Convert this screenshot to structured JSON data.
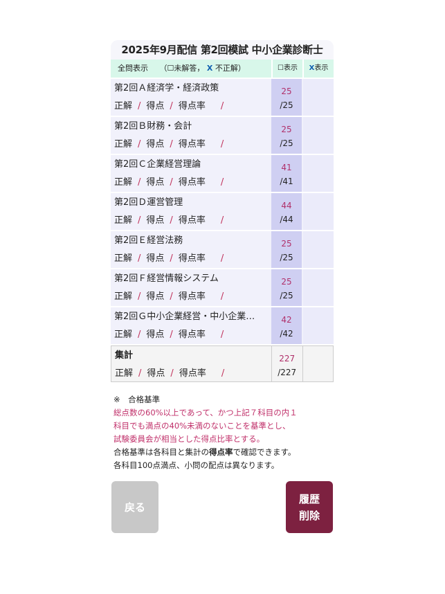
{
  "title": "2025年9月配信 第2回模試 中小企業診断士",
  "header": {
    "all": "全問表示",
    "legend_open": "（",
    "legend_unanswered": "☐未解答，",
    "legend_x": "X",
    "legend_wrong": "不正解）",
    "col_unanswered": "☐表示",
    "col_x": "X",
    "col_x_label": "表示"
  },
  "sub_labels": {
    "correct": "正解",
    "slash": "/",
    "score": "得点",
    "rate": "得点率"
  },
  "subjects": [
    {
      "name": "第2回Ａ経済学・経済政策",
      "score": "25",
      "total": "/25"
    },
    {
      "name": "第2回Ｂ財務・会計",
      "score": "25",
      "total": "/25"
    },
    {
      "name": "第2回Ｃ企業経営理論",
      "score": "41",
      "total": "/41"
    },
    {
      "name": "第2回Ｄ運営管理",
      "score": "44",
      "total": "/44"
    },
    {
      "name": "第2回Ｅ経営法務",
      "score": "25",
      "total": "/25"
    },
    {
      "name": "第2回Ｆ経営情報システム",
      "score": "25",
      "total": "/25"
    },
    {
      "name": "第2回Ｇ中小企業経営・中小企業…",
      "score": "42",
      "total": "/42"
    }
  ],
  "summary": {
    "name": "集計",
    "score": "227",
    "total": "/227"
  },
  "notes": {
    "heading": "※　合格基準",
    "red1": "総点数の60%以上であって、かつ上記７科目の内１",
    "red2": "科目でも満点の40%未満のないことを基準とし、",
    "red3": "試験委員会が相当とした得点比率とする。",
    "line4a": "合格基準は各科目と集計の",
    "line4b": "得点率",
    "line4c": "で確認できます。",
    "line5": "各科目100点満点、小問の配点は異なります。"
  },
  "buttons": {
    "back": "戻る",
    "delete1": "履歴",
    "delete2": "削除"
  },
  "colors": {
    "accent": "#7d2140",
    "score": "#b0306a",
    "header_bg": "#d8f7ea"
  }
}
